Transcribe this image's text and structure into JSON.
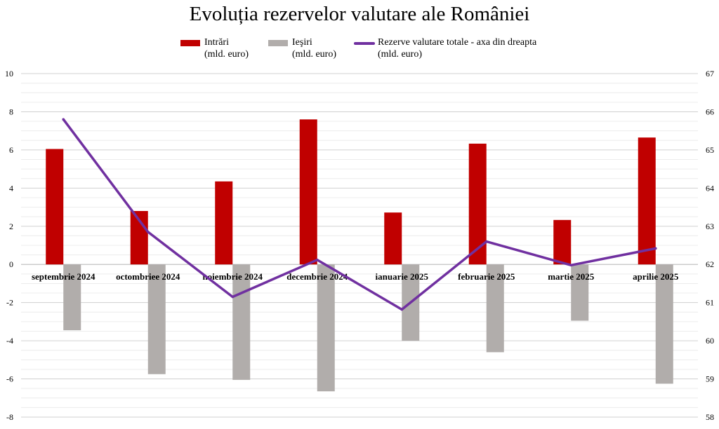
{
  "chart_data": {
    "type": "bar",
    "title": "Evoluția rezervelor valutare ale României",
    "categories": [
      "septembrie 2024",
      "octombriee 2024",
      "noiembrie 2024",
      "decembrie 2024",
      "ianuarie 2025",
      "februarie 2025",
      "martie 2025",
      "aprilie 2025"
    ],
    "series": [
      {
        "name": "Intrări (mld. euro)",
        "legend_line1": "Intrări",
        "legend_line2": "(mld. euro)",
        "type": "bar",
        "axis": "left",
        "color": "#c00000",
        "values": [
          6.05,
          2.8,
          4.35,
          7.6,
          2.72,
          6.33,
          2.33,
          6.65
        ]
      },
      {
        "name": "Ieșiri (mld. euro)",
        "legend_line1": "Ieşiri",
        "legend_line2": "(mld. euro)",
        "type": "bar",
        "axis": "left",
        "color": "#b1adab",
        "values": [
          -3.45,
          -5.75,
          -6.05,
          -6.65,
          -4.0,
          -4.6,
          -2.95,
          -6.25
        ]
      },
      {
        "name": "Rezerve valutare totale - axa din dreapta (mld. euro)",
        "legend_line1": "Rezerve valutare totale - axa din dreapta",
        "legend_line2": "(mld. euro)",
        "type": "line",
        "axis": "right",
        "color": "#7030a0",
        "values": [
          65.8,
          62.85,
          61.15,
          62.12,
          60.82,
          62.6,
          61.98,
          62.42
        ]
      }
    ],
    "y_left": {
      "ylim": [
        -8,
        10
      ],
      "ticks": [
        10,
        8,
        6,
        4,
        2,
        0,
        -2,
        -4,
        -6,
        -8
      ]
    },
    "y_right": {
      "ylim": [
        58,
        67
      ],
      "ticks": [
        67,
        66,
        65,
        64,
        63,
        62,
        61,
        60,
        59,
        58
      ]
    },
    "grid": true,
    "legend_position": "top"
  }
}
